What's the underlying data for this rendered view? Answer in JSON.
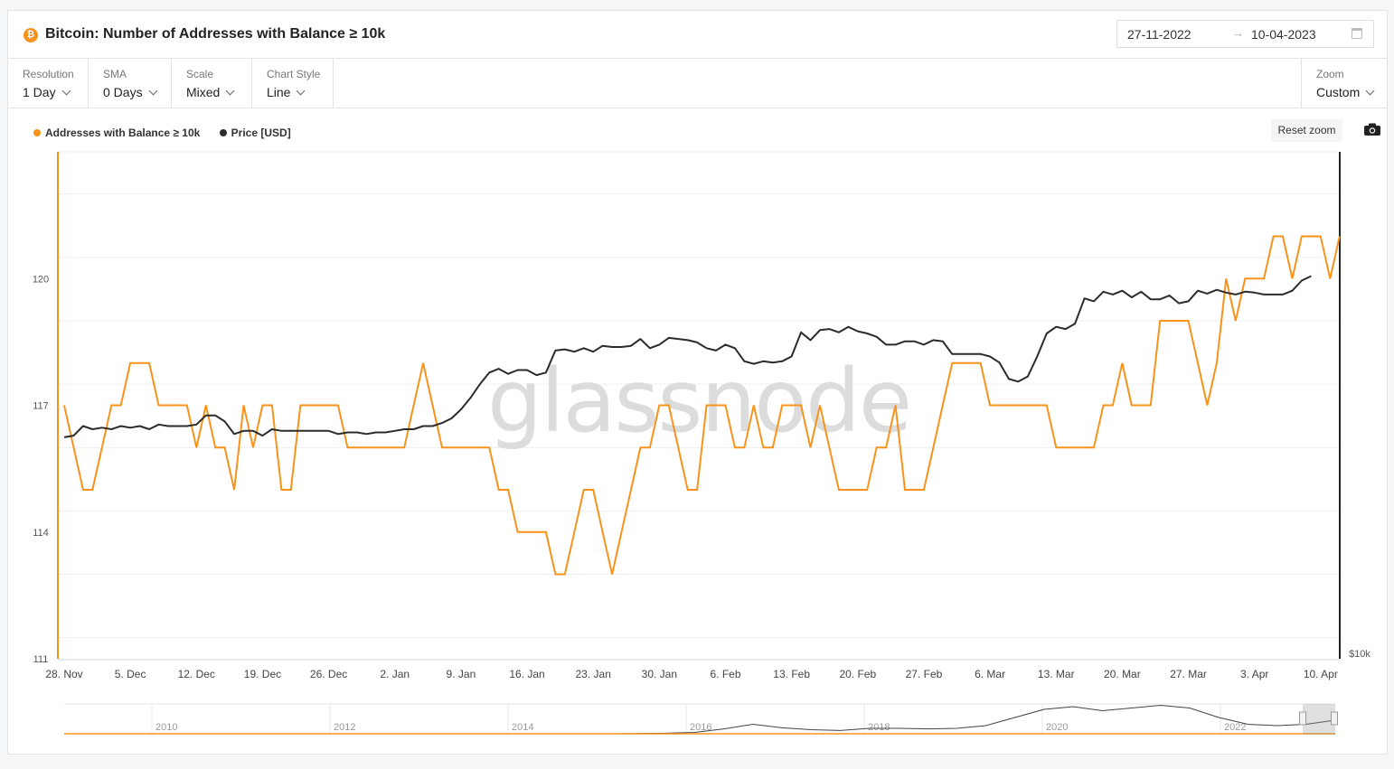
{
  "header": {
    "asset_symbol": "₿",
    "title": "Bitcoin: Number of Addresses with Balance ≥ 10k",
    "date_from": "27-11-2022",
    "date_arrow": "→",
    "date_to": "10-04-2023"
  },
  "controls": {
    "resolution": {
      "label": "Resolution",
      "value": "1 Day"
    },
    "sma": {
      "label": "SMA",
      "value": "0 Days"
    },
    "scale": {
      "label": "Scale",
      "value": "Mixed"
    },
    "chart_style": {
      "label": "Chart Style",
      "value": "Line"
    },
    "zoom": {
      "label": "Zoom",
      "value": "Custom"
    }
  },
  "toolbar": {
    "reset_zoom": "Reset zoom",
    "camera_icon": "camera-icon"
  },
  "watermark": "glassnode",
  "colors": {
    "addresses": "#f7931a",
    "price": "#2b2b2b",
    "accent": "#f7931a",
    "grid": "#eceff1"
  },
  "chart_data": {
    "type": "line",
    "title": "Bitcoin: Number of Addresses with Balance ≥ 10k",
    "x_start": "2022-11-28",
    "x_tick_labels": [
      "28. Nov",
      "5. Dec",
      "12. Dec",
      "19. Dec",
      "26. Dec",
      "2. Jan",
      "9. Jan",
      "16. Jan",
      "23. Jan",
      "30. Jan",
      "6. Feb",
      "13. Feb",
      "20. Feb",
      "27. Feb",
      "6. Mar",
      "13. Mar",
      "20. Mar",
      "27. Mar",
      "3. Apr",
      "10. Apr"
    ],
    "y_left": {
      "ylim": [
        111,
        123
      ],
      "tick_labels": [
        "111",
        "114",
        "117",
        "120"
      ]
    },
    "y_right": {
      "label": "$10k",
      "scale": "log"
    },
    "legend": {
      "position": "top-left",
      "items": [
        "Addresses with Balance ≥ 10k",
        "Price [USD]"
      ]
    },
    "grid": true,
    "series": [
      {
        "name": "Addresses with Balance ≥ 10k",
        "axis": "left",
        "values": [
          117,
          116,
          115,
          115,
          116,
          117,
          117,
          118,
          118,
          118,
          117,
          117,
          117,
          117,
          116,
          117,
          116,
          116,
          115,
          117,
          116,
          117,
          117,
          115,
          115,
          117,
          117,
          117,
          117,
          117,
          116,
          116,
          116,
          116,
          116,
          116,
          116,
          117,
          118,
          117,
          116,
          116,
          116,
          116,
          116,
          116,
          115,
          115,
          114,
          114,
          114,
          114,
          113,
          113,
          114,
          115,
          115,
          114,
          113,
          114,
          115,
          116,
          116,
          117,
          117,
          116,
          115,
          115,
          117,
          117,
          117,
          116,
          116,
          117,
          116,
          116,
          117,
          117,
          117,
          116,
          117,
          116,
          115,
          115,
          115,
          115,
          116,
          116,
          117,
          115,
          115,
          115,
          116,
          117,
          118,
          118,
          118,
          118,
          117,
          117,
          117,
          117,
          117,
          117,
          117,
          116,
          116,
          116,
          116,
          116,
          117,
          117,
          118,
          117,
          117,
          117,
          119,
          119,
          119,
          119,
          118,
          117,
          118,
          120,
          119,
          120,
          120,
          120,
          121,
          121,
          120,
          121,
          121,
          121,
          120,
          121
        ]
      },
      {
        "name": "Price [USD]",
        "axis": "right",
        "values": [
          16.4,
          16.5,
          17.1,
          16.9,
          17.0,
          16.9,
          17.1,
          17.0,
          17.1,
          16.9,
          17.2,
          17.1,
          17.1,
          17.1,
          17.2,
          17.8,
          17.8,
          17.4,
          16.6,
          16.8,
          16.8,
          16.5,
          16.9,
          16.8,
          16.8,
          16.8,
          16.8,
          16.8,
          16.8,
          16.6,
          16.7,
          16.7,
          16.6,
          16.7,
          16.7,
          16.8,
          16.9,
          16.9,
          17.1,
          17.1,
          17.3,
          17.6,
          18.2,
          19.0,
          20.0,
          20.9,
          21.2,
          20.8,
          21.1,
          21.1,
          20.7,
          20.9,
          22.7,
          22.8,
          22.6,
          22.9,
          22.6,
          23.1,
          23.0,
          23.0,
          23.1,
          23.7,
          22.9,
          23.2,
          23.8,
          23.7,
          23.6,
          23.4,
          22.9,
          22.7,
          23.2,
          22.9,
          21.8,
          21.6,
          21.8,
          21.7,
          21.8,
          22.2,
          24.3,
          23.6,
          24.5,
          24.6,
          24.3,
          24.8,
          24.4,
          24.2,
          23.9,
          23.2,
          23.2,
          23.5,
          23.5,
          23.2,
          23.6,
          23.5,
          22.4,
          22.4,
          22.4,
          22.4,
          22.2,
          21.7,
          20.4,
          20.2,
          20.6,
          22.2,
          24.2,
          24.8,
          24.6,
          25.1,
          27.6,
          27.3,
          28.3,
          28.0,
          28.4,
          27.7,
          28.3,
          27.5,
          27.5,
          27.9,
          27.1,
          27.3,
          28.4,
          28.1,
          28.5,
          28.2,
          28.0,
          28.3,
          28.2,
          28.0,
          28.0,
          28.0,
          28.4,
          29.5,
          30.0
        ]
      }
    ]
  },
  "navigator": {
    "year_labels": [
      "2010",
      "2012",
      "2014",
      "2016",
      "2018",
      "2020",
      "2022"
    ]
  }
}
